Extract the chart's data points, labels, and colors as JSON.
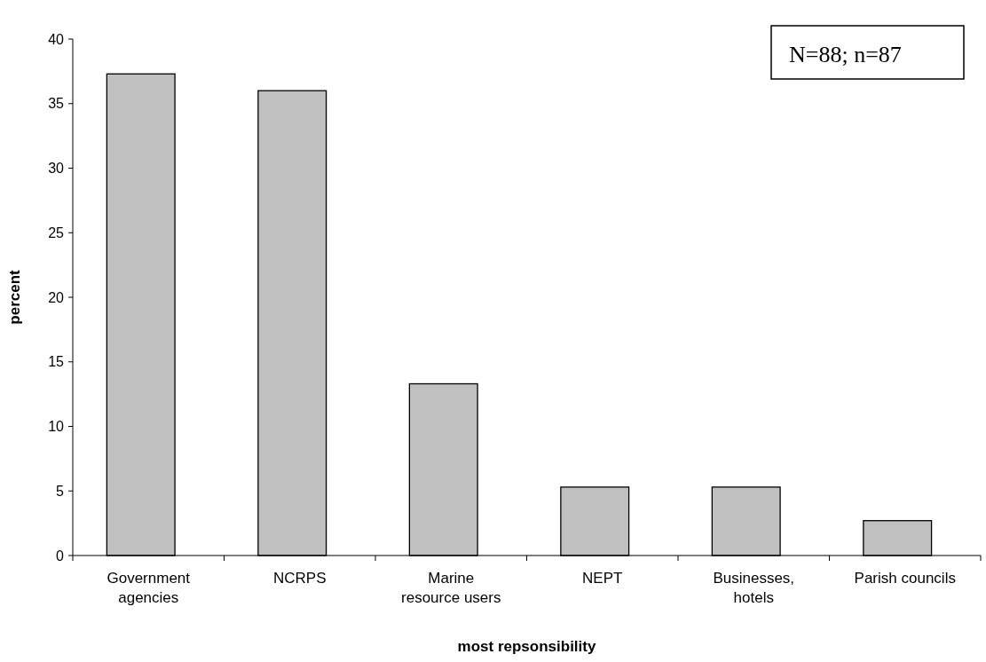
{
  "chart_data": {
    "type": "bar",
    "xlabel": "most repsonsibility",
    "ylabel": "percent",
    "categories": [
      "Government agencies",
      "NCRPS",
      "Marine resource users",
      "NEPT",
      "Businesses, hotels",
      "Parish councils"
    ],
    "values": [
      37.3,
      36.0,
      13.3,
      5.3,
      5.3,
      2.7
    ],
    "color": "#c0c0c0",
    "ylim": [
      0,
      40
    ],
    "yticks": [
      0,
      5,
      10,
      15,
      20,
      25,
      30,
      35,
      40
    ],
    "grid": false,
    "annotations": [
      "N=88; n=87"
    ]
  }
}
